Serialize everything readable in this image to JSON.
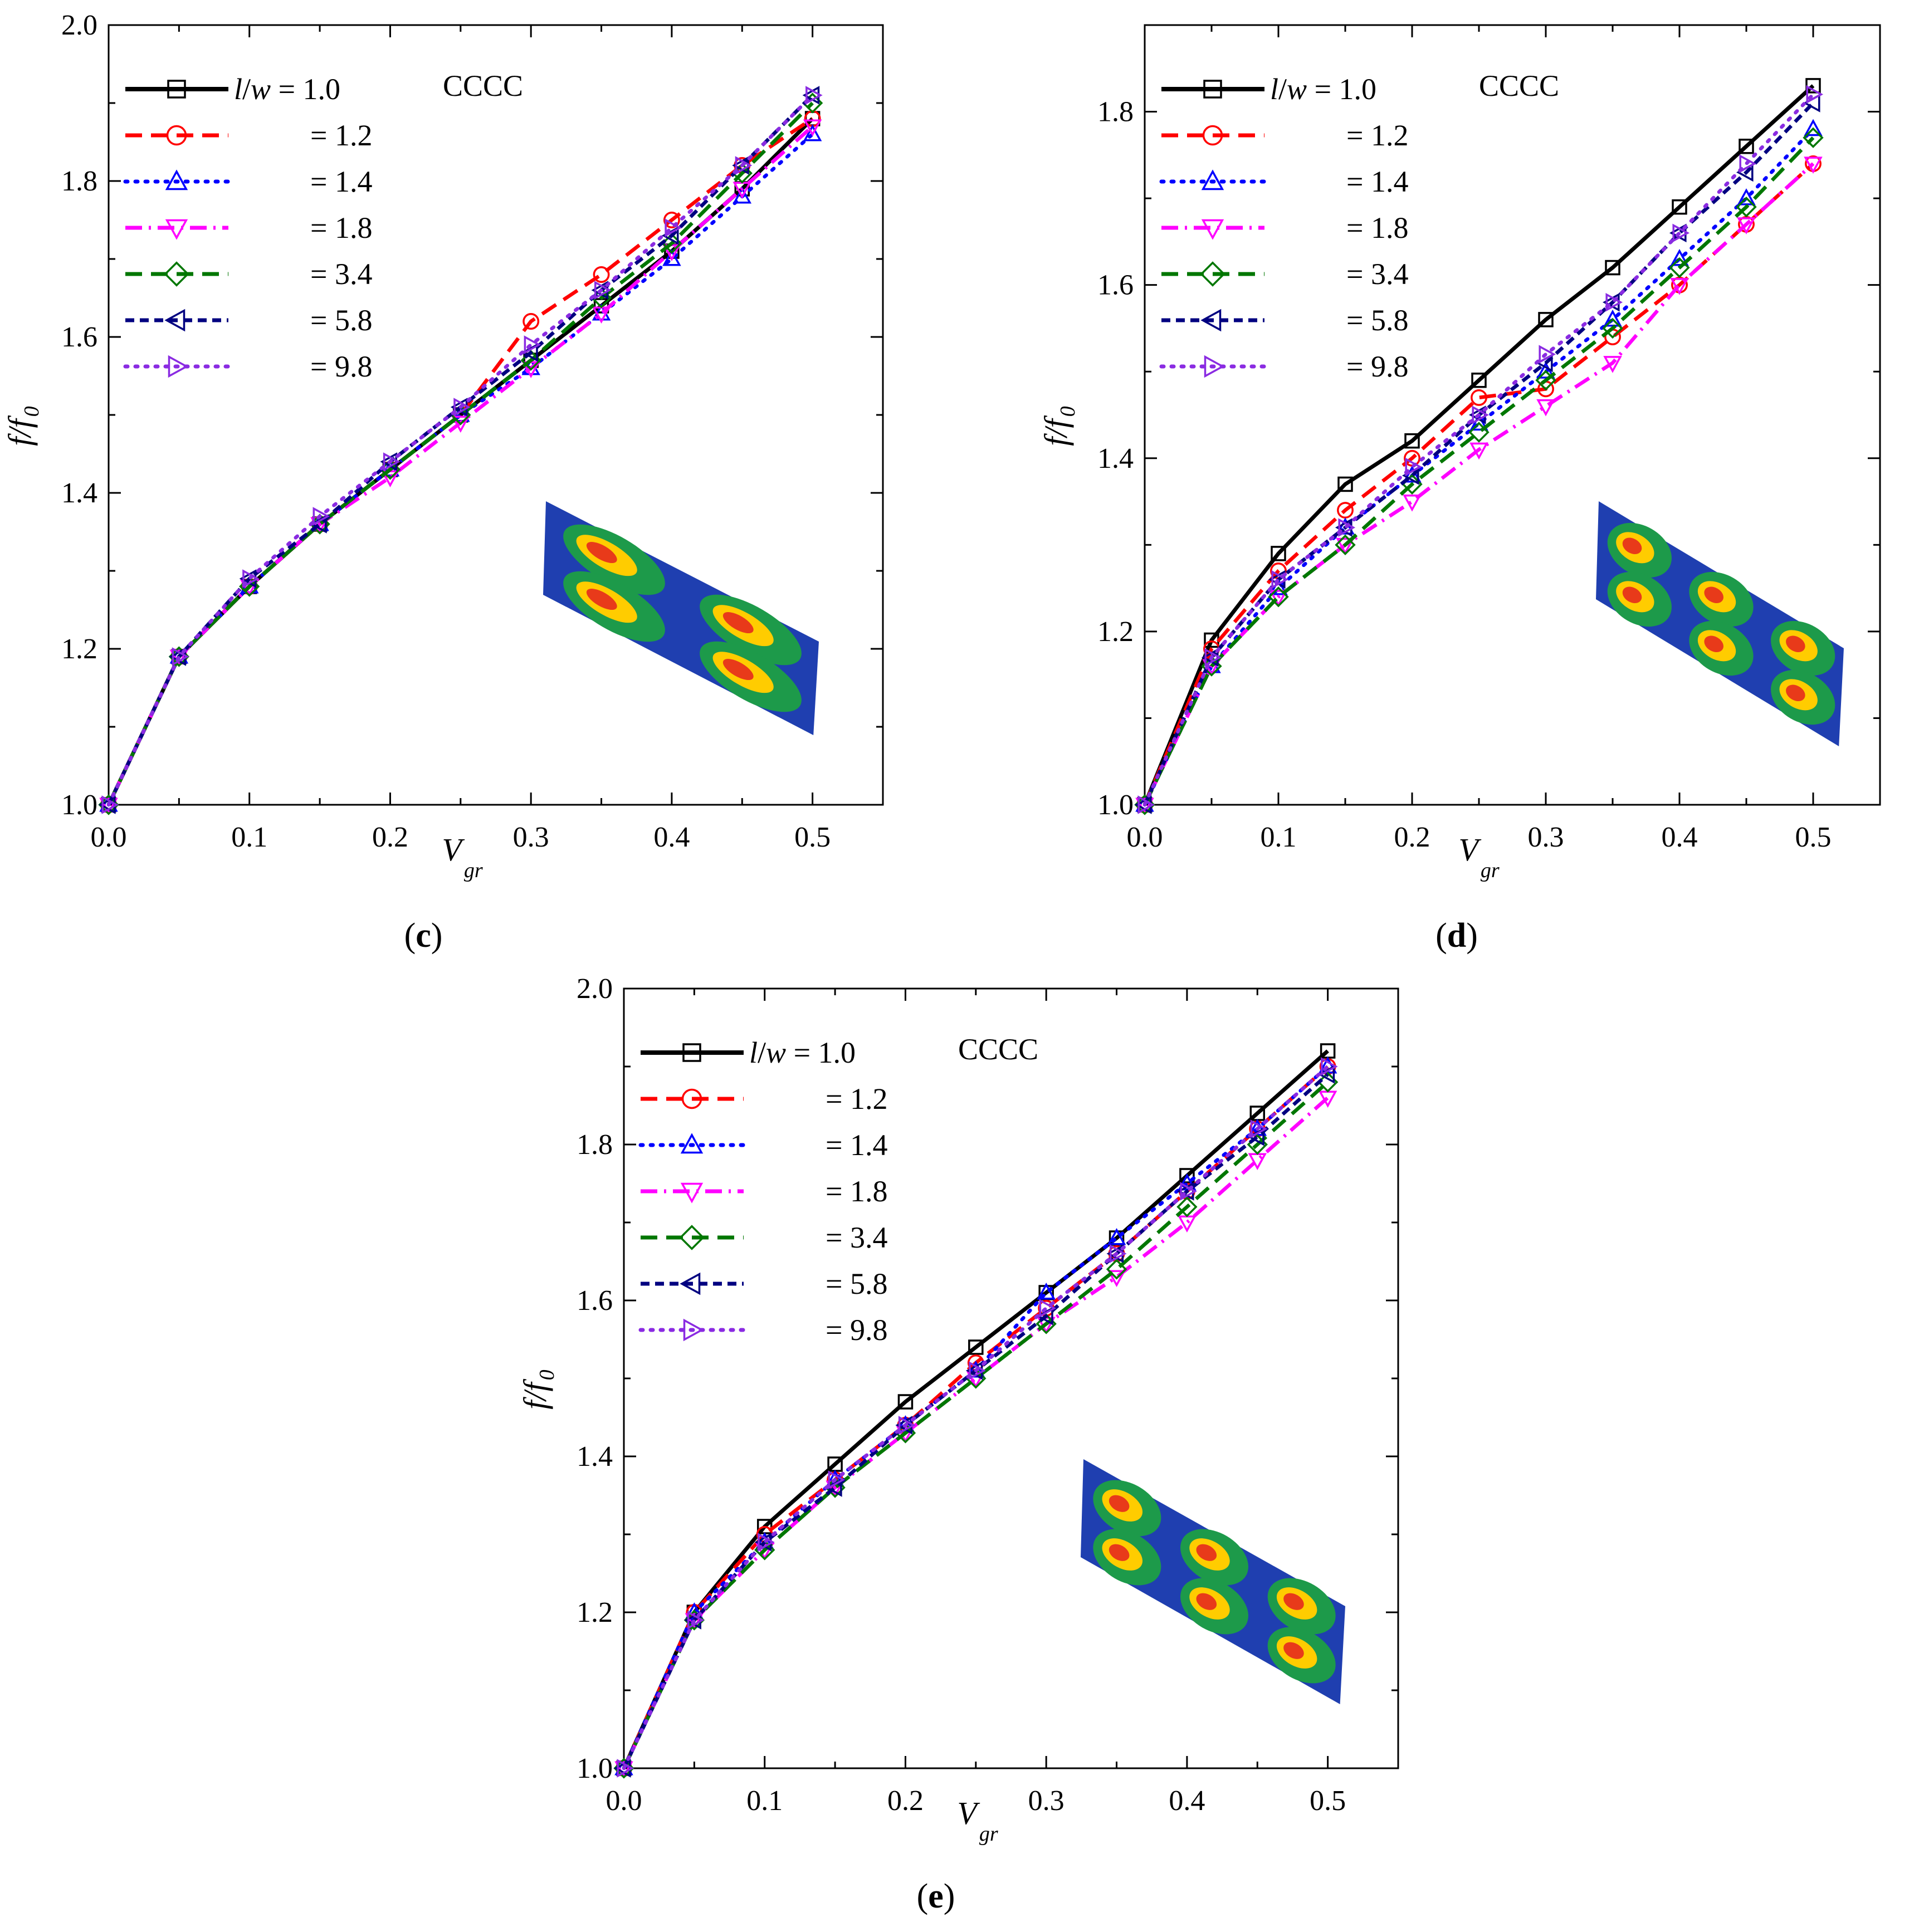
{
  "figure": {
    "panels": [
      "c",
      "d",
      "e"
    ]
  },
  "legend_meta": {
    "var_label_left": "l",
    "var_label_slash": "/",
    "var_label_right": "w",
    "equals": "=",
    "bc_label": "CCCC"
  },
  "axis_labels": {
    "x_main": "V",
    "x_sub": "gr",
    "y_f1": "f",
    "y_slash": "/",
    "y_f2": "f",
    "y_sub": "0"
  },
  "series_style": [
    {
      "name": "1.0",
      "color": "#000000",
      "marker": "square",
      "dash": "solid"
    },
    {
      "name": "1.2",
      "color": "#ff0000",
      "marker": "circle",
      "dash": "dash"
    },
    {
      "name": "1.4",
      "color": "#0000ff",
      "marker": "triangle-up",
      "dash": "dot"
    },
    {
      "name": "1.8",
      "color": "#ff00ff",
      "marker": "triangle-down",
      "dash": "dashdot"
    },
    {
      "name": "3.4",
      "color": "#007700",
      "marker": "diamond",
      "dash": "dash"
    },
    {
      "name": "5.8",
      "color": "#000080",
      "marker": "triangle-left",
      "dash": "shortdash"
    },
    {
      "name": "9.8",
      "color": "#8a2be2",
      "marker": "triangle-right",
      "dash": "dot"
    }
  ],
  "chart_data": [
    {
      "type": "line",
      "panel_label": "c",
      "bc": "CCCC",
      "xlim": [
        0.0,
        0.55
      ],
      "ylim": [
        1.0,
        2.0
      ],
      "xticks": [
        "0.0",
        "0.1",
        "0.2",
        "0.3",
        "0.4",
        "0.5"
      ],
      "yticks": [
        "1.0",
        "1.2",
        "1.4",
        "1.6",
        "1.8",
        "2.0"
      ],
      "x": [
        0.0,
        0.05,
        0.1,
        0.15,
        0.2,
        0.25,
        0.3,
        0.35,
        0.4,
        0.45,
        0.5
      ],
      "series": [
        {
          "name": "1.0",
          "values": [
            1.0,
            1.19,
            1.28,
            1.36,
            1.43,
            1.5,
            1.57,
            1.64,
            1.71,
            1.79,
            1.88
          ]
        },
        {
          "name": "1.2",
          "values": [
            1.0,
            1.19,
            1.28,
            1.36,
            1.43,
            1.5,
            1.62,
            1.68,
            1.75,
            1.82,
            1.88
          ]
        },
        {
          "name": "1.4",
          "values": [
            1.0,
            1.19,
            1.28,
            1.36,
            1.43,
            1.5,
            1.56,
            1.63,
            1.7,
            1.78,
            1.86
          ]
        },
        {
          "name": "1.8",
          "values": [
            1.0,
            1.19,
            1.28,
            1.36,
            1.42,
            1.49,
            1.56,
            1.63,
            1.71,
            1.79,
            1.87
          ]
        },
        {
          "name": "3.4",
          "values": [
            1.0,
            1.19,
            1.28,
            1.36,
            1.43,
            1.5,
            1.57,
            1.65,
            1.72,
            1.81,
            1.9
          ]
        },
        {
          "name": "5.8",
          "values": [
            1.0,
            1.19,
            1.29,
            1.36,
            1.44,
            1.51,
            1.58,
            1.66,
            1.73,
            1.82,
            1.91
          ]
        },
        {
          "name": "9.8",
          "values": [
            1.0,
            1.19,
            1.29,
            1.37,
            1.44,
            1.51,
            1.59,
            1.66,
            1.74,
            1.82,
            1.91
          ]
        }
      ]
    },
    {
      "type": "line",
      "panel_label": "d",
      "bc": "CCCC",
      "xlim": [
        0.0,
        0.55
      ],
      "ylim": [
        1.0,
        1.9
      ],
      "xticks": [
        "0.0",
        "0.1",
        "0.2",
        "0.3",
        "0.4",
        "0.5"
      ],
      "yticks": [
        "1.0",
        "1.2",
        "1.4",
        "1.6",
        "1.8"
      ],
      "x": [
        0.0,
        0.05,
        0.1,
        0.15,
        0.2,
        0.25,
        0.3,
        0.35,
        0.4,
        0.45,
        0.5
      ],
      "series": [
        {
          "name": "1.0",
          "values": [
            1.0,
            1.19,
            1.29,
            1.37,
            1.42,
            1.49,
            1.56,
            1.62,
            1.69,
            1.76,
            1.83
          ]
        },
        {
          "name": "1.2",
          "values": [
            1.0,
            1.18,
            1.27,
            1.34,
            1.4,
            1.47,
            1.48,
            1.54,
            1.6,
            1.67,
            1.74
          ]
        },
        {
          "name": "1.4",
          "values": [
            1.0,
            1.16,
            1.25,
            1.32,
            1.38,
            1.44,
            1.5,
            1.56,
            1.63,
            1.7,
            1.78
          ]
        },
        {
          "name": "1.8",
          "values": [
            1.0,
            1.16,
            1.24,
            1.3,
            1.35,
            1.41,
            1.46,
            1.51,
            1.6,
            1.67,
            1.74
          ]
        },
        {
          "name": "3.4",
          "values": [
            1.0,
            1.16,
            1.24,
            1.3,
            1.37,
            1.43,
            1.49,
            1.55,
            1.62,
            1.69,
            1.77
          ]
        },
        {
          "name": "5.8",
          "values": [
            1.0,
            1.17,
            1.26,
            1.32,
            1.38,
            1.45,
            1.51,
            1.58,
            1.66,
            1.73,
            1.81
          ]
        },
        {
          "name": "9.8",
          "values": [
            1.0,
            1.17,
            1.26,
            1.32,
            1.39,
            1.45,
            1.52,
            1.58,
            1.66,
            1.74,
            1.82
          ]
        }
      ]
    },
    {
      "type": "line",
      "panel_label": "e",
      "bc": "CCCC",
      "xlim": [
        0.0,
        0.55
      ],
      "ylim": [
        1.0,
        2.0
      ],
      "xticks": [
        "0.0",
        "0.1",
        "0.2",
        "0.3",
        "0.4",
        "0.5"
      ],
      "yticks": [
        "1.0",
        "1.2",
        "1.4",
        "1.6",
        "1.8",
        "2.0"
      ],
      "x": [
        0.0,
        0.05,
        0.1,
        0.15,
        0.2,
        0.25,
        0.3,
        0.35,
        0.4,
        0.45,
        0.5
      ],
      "series": [
        {
          "name": "1.0",
          "values": [
            1.0,
            1.2,
            1.31,
            1.39,
            1.47,
            1.54,
            1.61,
            1.68,
            1.76,
            1.84,
            1.92
          ]
        },
        {
          "name": "1.2",
          "values": [
            1.0,
            1.2,
            1.3,
            1.37,
            1.44,
            1.52,
            1.59,
            1.66,
            1.74,
            1.82,
            1.9
          ]
        },
        {
          "name": "1.4",
          "values": [
            1.0,
            1.2,
            1.29,
            1.37,
            1.44,
            1.51,
            1.61,
            1.68,
            1.75,
            1.82,
            1.9
          ]
        },
        {
          "name": "1.8",
          "values": [
            1.0,
            1.19,
            1.28,
            1.36,
            1.43,
            1.5,
            1.57,
            1.63,
            1.7,
            1.78,
            1.86
          ]
        },
        {
          "name": "3.4",
          "values": [
            1.0,
            1.19,
            1.28,
            1.36,
            1.43,
            1.5,
            1.57,
            1.64,
            1.72,
            1.8,
            1.88
          ]
        },
        {
          "name": "5.8",
          "values": [
            1.0,
            1.19,
            1.29,
            1.36,
            1.44,
            1.51,
            1.58,
            1.66,
            1.74,
            1.81,
            1.89
          ]
        },
        {
          "name": "9.8",
          "values": [
            1.0,
            1.19,
            1.29,
            1.37,
            1.44,
            1.51,
            1.59,
            1.66,
            1.74,
            1.82,
            1.9
          ]
        }
      ]
    }
  ]
}
